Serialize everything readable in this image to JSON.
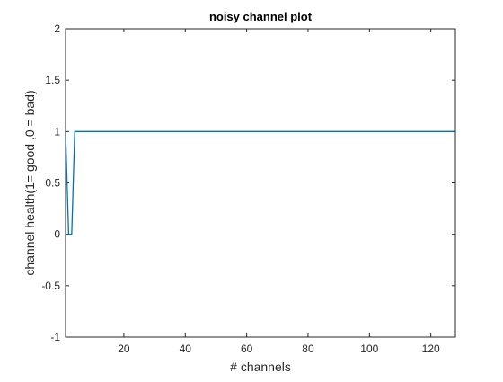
{
  "chart_data": {
    "type": "line",
    "title": "noisy channel plot",
    "xlabel": "# channels",
    "ylabel": "channel health(1= good ,0 = bad)",
    "xlim": [
      1,
      128
    ],
    "ylim": [
      -1,
      2
    ],
    "x_ticks": [
      20,
      40,
      60,
      80,
      100,
      120
    ],
    "y_ticks": [
      -1,
      -0.5,
      0,
      0.5,
      1,
      1.5,
      2
    ],
    "y_tick_labels": [
      "-1",
      "-0.5",
      "0",
      "0.5",
      "1",
      "1.5",
      "2"
    ],
    "grid": false,
    "line_color": "#0072BD",
    "series": [
      {
        "x": [
          1,
          2,
          3,
          4,
          128
        ],
        "values": [
          1,
          0,
          0,
          1,
          1
        ]
      }
    ]
  }
}
